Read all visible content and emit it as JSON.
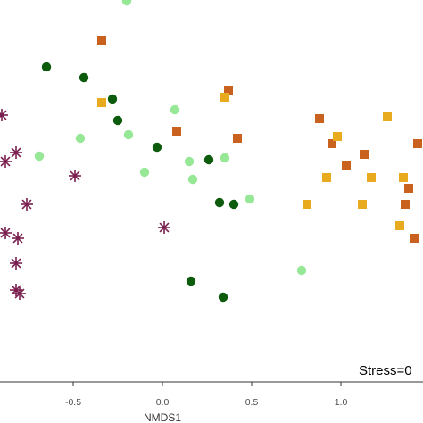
{
  "chart_data": {
    "type": "scatter",
    "xlabel": "NMDS1",
    "ylabel": "",
    "xlim": [
      -0.9,
      1.45
    ],
    "ylim": [
      -1.2,
      1.0
    ],
    "x_ticks": [
      -0.5,
      0.0,
      0.5,
      1.0
    ],
    "x_tick_labels": [
      "-0.5",
      "0.0",
      "0.5",
      "1.0"
    ],
    "annotation": "Stress=0",
    "grid": false,
    "series": [
      {
        "marker": "asterisk",
        "color": "#7a1f4f",
        "points": [
          [
            -0.9,
            0.31
          ],
          [
            -0.82,
            0.1
          ],
          [
            -0.88,
            0.05
          ],
          [
            -0.49,
            -0.03
          ],
          [
            -0.76,
            -0.19
          ],
          [
            -0.88,
            -0.35
          ],
          [
            -0.81,
            -0.38
          ],
          [
            0.01,
            -0.32
          ],
          [
            -0.82,
            -0.52
          ],
          [
            -0.82,
            -0.67
          ],
          [
            -0.8,
            -0.69
          ]
        ]
      },
      {
        "marker": "circle",
        "color": "#96e896",
        "points": [
          [
            -0.2,
            0.95
          ],
          [
            0.07,
            0.34
          ],
          [
            -0.46,
            0.18
          ],
          [
            -0.19,
            0.2
          ],
          [
            -0.69,
            0.08
          ],
          [
            0.15,
            0.05
          ],
          [
            -0.1,
            -0.01
          ],
          [
            0.17,
            -0.05
          ],
          [
            0.35,
            0.07
          ],
          [
            0.49,
            -0.16
          ],
          [
            0.78,
            -0.56
          ]
        ]
      },
      {
        "marker": "circle",
        "color": "#0d5c0d",
        "points": [
          [
            -0.65,
            0.58
          ],
          [
            -0.44,
            0.52
          ],
          [
            -0.28,
            0.4
          ],
          [
            -0.25,
            0.28
          ],
          [
            -0.03,
            0.13
          ],
          [
            0.26,
            0.06
          ],
          [
            0.32,
            -0.18
          ],
          [
            0.4,
            -0.19
          ],
          [
            0.16,
            -0.62
          ],
          [
            0.34,
            -0.71
          ]
        ]
      },
      {
        "marker": "square",
        "color": "#c8621e",
        "points": [
          [
            -0.34,
            0.73
          ],
          [
            0.37,
            0.45
          ],
          [
            0.08,
            0.22
          ],
          [
            0.42,
            0.18
          ],
          [
            0.88,
            0.29
          ],
          [
            0.95,
            0.15
          ],
          [
            1.13,
            0.09
          ],
          [
            1.03,
            0.03
          ],
          [
            1.43,
            0.15
          ],
          [
            1.38,
            -0.1
          ],
          [
            1.36,
            -0.19
          ],
          [
            1.41,
            -0.38
          ]
        ]
      },
      {
        "marker": "square",
        "color": "#e8aa1e",
        "points": [
          [
            -0.34,
            0.38
          ],
          [
            0.35,
            0.41
          ],
          [
            0.98,
            0.19
          ],
          [
            1.26,
            0.3
          ],
          [
            0.92,
            -0.04
          ],
          [
            1.17,
            -0.04
          ],
          [
            0.81,
            -0.19
          ],
          [
            1.12,
            -0.19
          ],
          [
            1.35,
            -0.04
          ],
          [
            1.33,
            -0.31
          ]
        ]
      }
    ]
  }
}
